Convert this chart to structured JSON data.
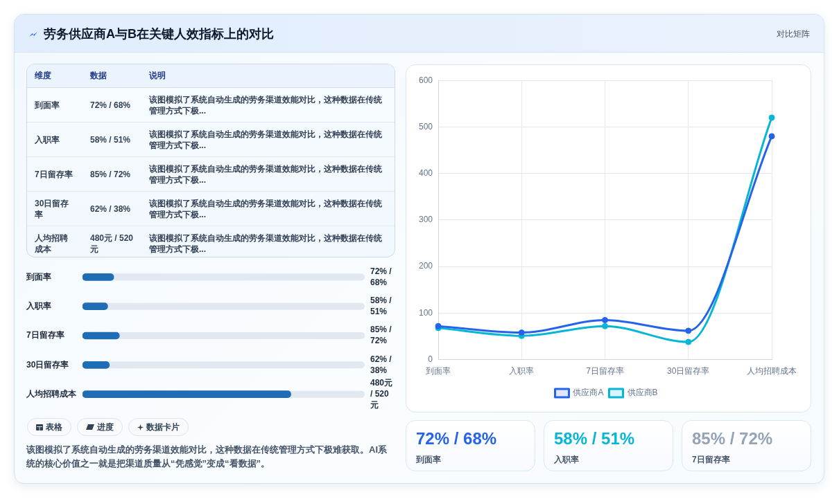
{
  "chart_data": [
    {
      "type": "other",
      "title": "劳务供应商A与B在关键人效指标上的对比",
      "annotations": [
        "对比矩阵"
      ]
    },
    {
      "type": "other",
      "ylabel": "维度",
      "categories": [
        "数据",
        "说明"
      ],
      "y_categories": [
        "到面率",
        "入职率",
        "7日留存率",
        "30日留存率",
        "人均招聘成本"
      ],
      "cell_labels": [
        [
          "72% / 68%",
          "该图模拟了系统自动生成的劳务渠道效能对比，这种数据在传统管理方式下极..."
        ],
        [
          "58% / 51%",
          "该图模拟了系统自动生成的劳务渠道效能对比，这种数据在传统管理方式下极..."
        ],
        [
          "85% / 72%",
          "该图模拟了系统自动生成的劳务渠道效能对比，这种数据在传统管理方式下极..."
        ],
        [
          "62% / 38%",
          "该图模拟了系统自动生成的劳务渠道效能对比，这种数据在传统管理方式下极..."
        ],
        [
          "480元 / 520元",
          "该图模拟了系统自动生成的劳务渠道效能对比，这种数据在传统管理方式下极..."
        ]
      ]
    },
    {
      "type": "bar",
      "orientation": "horizontal",
      "categories": [
        "到面率",
        "入职率",
        "7日留存率",
        "30日留存率",
        "人均招聘成本"
      ],
      "values": [
        72,
        58,
        85,
        62,
        480
      ],
      "value_labels": [
        "72% / 68%",
        "58% / 51%",
        "85% / 72%",
        "62% / 38%",
        "480元 / 520元"
      ],
      "color": "#1f6db5",
      "xlim": [
        0,
        650
      ],
      "tick_labels": "y"
    },
    {
      "type": "other",
      "annotations": [
        "表格",
        "进度",
        "数据卡片",
        "该图模拟了系统自动生成的劳务渠道效能对比，这种数据在传统管理方式下极难获取。AI系统的核心价值之一就是把渠道质量从“凭感觉”变成“看数据”。"
      ]
    },
    {
      "type": "line",
      "categories": [
        "到面率",
        "入职率",
        "7日留存率",
        "30日留存率",
        "人均招聘成本"
      ],
      "series": [
        {
          "name": "供应商A",
          "color": "#2563eb",
          "values": [
            72,
            58,
            85,
            62,
            480
          ]
        },
        {
          "name": "供应商B",
          "color": "#06b6d4",
          "values": [
            68,
            51,
            72,
            38,
            520
          ]
        }
      ],
      "ylim": [
        0,
        600
      ],
      "yticks": [
        0,
        100,
        200,
        300,
        400,
        500,
        600
      ],
      "grid": true,
      "legend": "bottom",
      "marker": "circle"
    },
    {
      "type": "other",
      "categories": [
        "到面率",
        "入职率",
        "7日留存率"
      ],
      "value_labels": [
        "72% / 68%",
        "58% / 51%",
        "85% / 72%"
      ]
    }
  ]
}
